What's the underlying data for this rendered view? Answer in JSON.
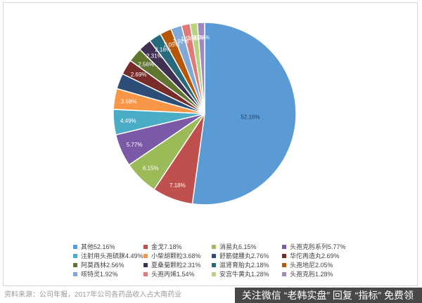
{
  "chart_data": {
    "type": "pie",
    "slices": [
      {
        "name": "其他",
        "value": 52.16,
        "label": "52.16%",
        "legend": "其他52.16%",
        "color": "#5b9bd5"
      },
      {
        "name": "金戈",
        "value": 7.18,
        "label": "7.18%",
        "legend": "金戈7.18%",
        "color": "#c0504d"
      },
      {
        "name": "消易丸",
        "value": 6.15,
        "label": "6.15%",
        "legend": "消易丸6.15%",
        "color": "#9bbb59"
      },
      {
        "name": "头孢克肟系列",
        "value": 5.77,
        "label": "5.77%",
        "legend": "头孢克肟系列5.77%",
        "color": "#7a5aa6"
      },
      {
        "name": "注射用头孢硫脒",
        "value": 4.49,
        "label": "4.49%",
        "legend": "注射用头孢硫脒4.49%",
        "color": "#4bacc6"
      },
      {
        "name": "小柴胡颗粒",
        "value": 3.68,
        "label": "3.68%",
        "legend": "小柴胡颗粒3.68%",
        "color": "#f79646"
      },
      {
        "name": "舒筋健腰丸",
        "value": 2.76,
        "label": "",
        "legend": "舒筋健腰丸2.76%",
        "color": "#2c4d75"
      },
      {
        "name": "华佗再造丸",
        "value": 2.69,
        "label": "2.69%",
        "legend": "华佗再造丸2.69%",
        "color": "#772c2a"
      },
      {
        "name": "阿莫西林",
        "value": 2.56,
        "label": "2.56%",
        "legend": "阿莫西林2.56%",
        "color": "#5f7530"
      },
      {
        "name": "夏桑菊颗粒",
        "value": 2.31,
        "label": "2.31%",
        "legend": "夏桑菊颗粒2.31%",
        "color": "#403152"
      },
      {
        "name": "滋肾育胎丸",
        "value": 2.18,
        "label": "2.18%",
        "legend": "滋肾育胎丸2.18%",
        "color": "#276a7c"
      },
      {
        "name": "头孢地尼",
        "value": 2.05,
        "label": "2.05%",
        "legend": "头孢地尼2.05%",
        "color": "#b65708"
      },
      {
        "name": "咳特灵",
        "value": 1.92,
        "label": "1.92%",
        "legend": "咳特灵1.92%",
        "color": "#7fa8d6"
      },
      {
        "name": "头孢丙烯",
        "value": 1.54,
        "label": "1.54%",
        "legend": "头孢丙烯1.54%",
        "color": "#e07a78"
      },
      {
        "name": "安宫牛黄丸",
        "value": 1.28,
        "label": "1.28%",
        "legend": "安宫牛黄丸1.28%",
        "color": "#b8d37e"
      },
      {
        "name": "头孢克肟",
        "value": 1.28,
        "label": "1.28%",
        "legend": "头孢克肟1.28%",
        "color": "#9f88c0"
      }
    ],
    "start_angle_deg": 0,
    "direction": "clockwise",
    "legend_position": "bottom"
  },
  "footer": {
    "source": "资料来源：公司年报，2017年公司各药品收入占大南药业",
    "watermark": "关注微信 “老韩实盘” 回复 “指标” 免费领"
  }
}
